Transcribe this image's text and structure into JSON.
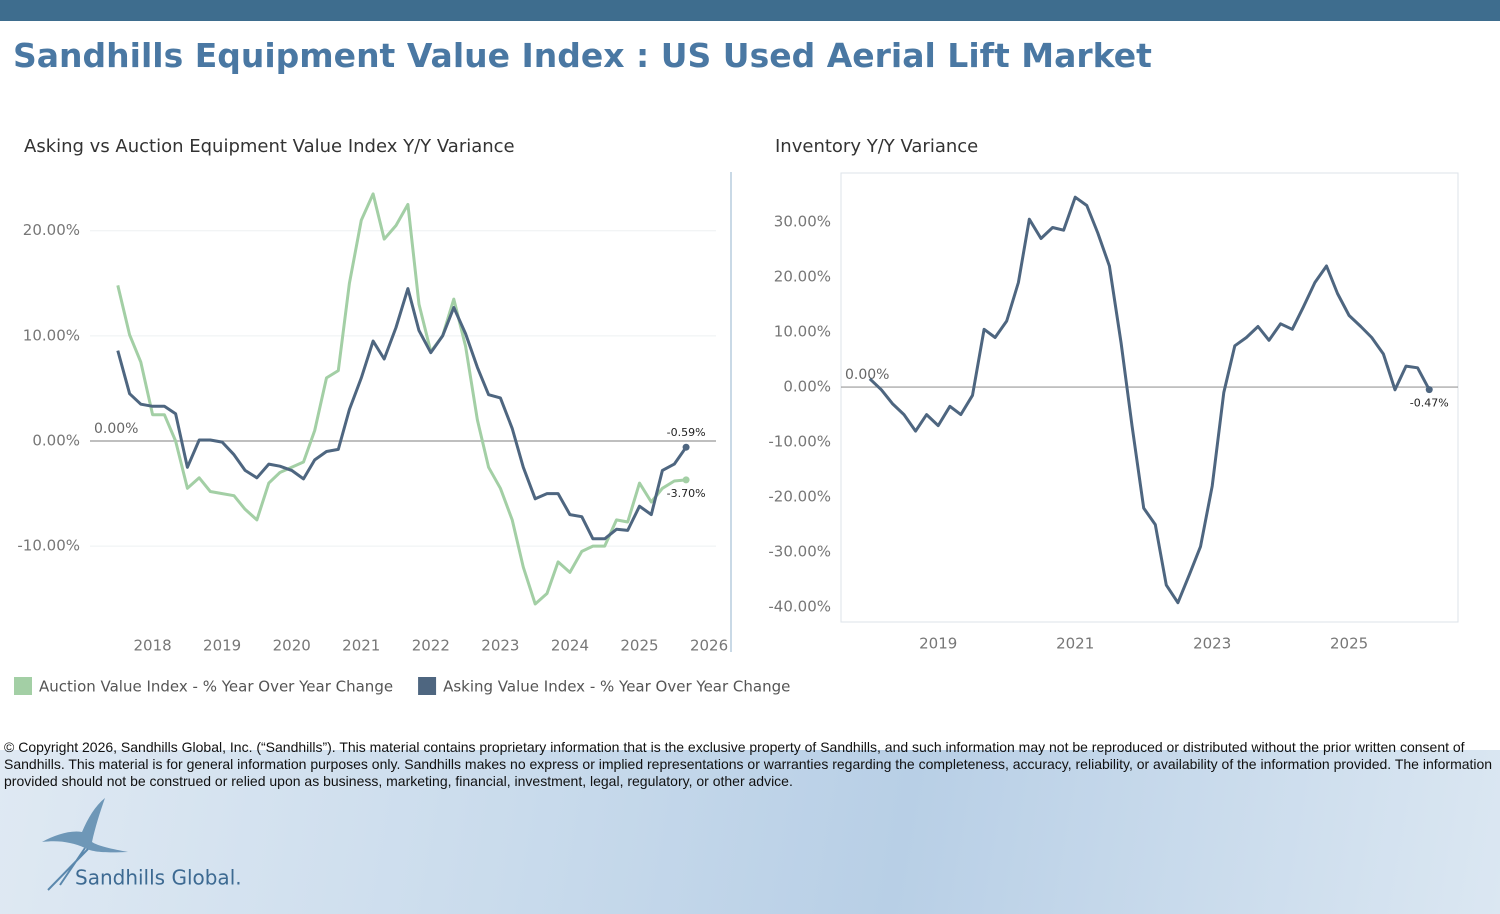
{
  "header": {
    "title": "Sandhills Equipment Value Index : US Used Aerial Lift Market"
  },
  "chart_data": [
    {
      "type": "line",
      "title": "Asking vs Auction Equipment Value Index Y/Y Variance",
      "x": [
        2017.5,
        2017.67,
        2017.83,
        2018,
        2018.17,
        2018.33,
        2018.5,
        2018.67,
        2018.83,
        2019,
        2019.17,
        2019.33,
        2019.5,
        2019.67,
        2019.83,
        2020,
        2020.17,
        2020.33,
        2020.5,
        2020.67,
        2020.83,
        2021,
        2021.17,
        2021.33,
        2021.5,
        2021.67,
        2021.83,
        2022,
        2022.17,
        2022.33,
        2022.5,
        2022.67,
        2022.83,
        2023,
        2023.17,
        2023.33,
        2023.5,
        2023.67,
        2023.83,
        2024,
        2024.17,
        2024.33,
        2024.5,
        2024.67,
        2024.83,
        2025,
        2025.17,
        2025.33,
        2025.5,
        2025.67
      ],
      "xlim": [
        2017.1,
        2026.1
      ],
      "xticks": [
        2018,
        2019,
        2020,
        2021,
        2022,
        2023,
        2024,
        2025,
        2026
      ],
      "ylim": [
        -17.5,
        25.3
      ],
      "yticks": [
        {
          "value": -10,
          "label": "-10.00%"
        },
        {
          "value": 0,
          "label": "0.00%"
        },
        {
          "value": 10,
          "label": "10.00%"
        },
        {
          "value": 20,
          "label": "20.00%"
        }
      ],
      "grid": true,
      "legend": "bottom",
      "reference_line": {
        "value": 0,
        "label": "0.00%"
      },
      "series": [
        {
          "name": "Auction Value Index - % Year Over Year Change",
          "color": "#a3cfa5",
          "values": [
            14.8,
            10.1,
            7.5,
            2.5,
            2.5,
            0,
            -4.5,
            -3.5,
            -4.8,
            -5,
            -5.2,
            -6.5,
            -7.5,
            -4,
            -3,
            -2.5,
            -2,
            1,
            6,
            6.7,
            15,
            21,
            23.5,
            19.2,
            20.5,
            22.5,
            13,
            8.5,
            10,
            13.5,
            9,
            2,
            -2.5,
            -4.5,
            -7.5,
            -12,
            -15.5,
            -14.5,
            -11.5,
            -12.5,
            -10.5,
            -10,
            -10,
            -7.5,
            -7.7,
            -4,
            -5.8,
            -4.5,
            -3.8,
            -3.7
          ],
          "value_labels": [
            null,
            null,
            null,
            null,
            null,
            null,
            null,
            null,
            null,
            null,
            null,
            null,
            null,
            null,
            null,
            null,
            null,
            null,
            null,
            null,
            null,
            null,
            null,
            null,
            null,
            null,
            null,
            null,
            null,
            null,
            null,
            null,
            null,
            null,
            null,
            null,
            null,
            null,
            null,
            null,
            null,
            null,
            null,
            null,
            null,
            null,
            null,
            null,
            null,
            "-3.70%"
          ]
        },
        {
          "name": "Asking Value Index - % Year Over Year Change",
          "color": "#4e6680",
          "values": [
            8.6,
            4.5,
            3.5,
            3.3,
            3.3,
            2.6,
            -2.5,
            0.1,
            0.1,
            -0.1,
            -1.3,
            -2.8,
            -3.5,
            -2.2,
            -2.4,
            -2.8,
            -3.6,
            -1.8,
            -1,
            -0.8,
            3,
            6,
            9.5,
            7.8,
            10.8,
            14.5,
            10.5,
            8.4,
            10,
            12.7,
            10.2,
            7,
            4.4,
            4.1,
            1.2,
            -2.5,
            -5.5,
            -5,
            -5,
            -7,
            -7.2,
            -9.3,
            -9.3,
            -8.4,
            -8.5,
            -6.2,
            -7,
            -2.8,
            -2.2,
            -0.59
          ],
          "value_labels": [
            null,
            null,
            null,
            null,
            null,
            null,
            null,
            null,
            null,
            null,
            null,
            null,
            null,
            null,
            null,
            null,
            null,
            null,
            null,
            null,
            null,
            null,
            null,
            null,
            null,
            null,
            null,
            null,
            null,
            null,
            null,
            null,
            null,
            null,
            null,
            null,
            null,
            null,
            null,
            null,
            null,
            null,
            null,
            null,
            null,
            null,
            null,
            null,
            null,
            "-0.59%"
          ]
        }
      ]
    },
    {
      "type": "line",
      "title": "Inventory Y/Y Variance",
      "x": [
        2018,
        2018.17,
        2018.33,
        2018.5,
        2018.67,
        2018.83,
        2019,
        2019.17,
        2019.33,
        2019.5,
        2019.67,
        2019.83,
        2020,
        2020.17,
        2020.33,
        2020.5,
        2020.67,
        2020.83,
        2021,
        2021.17,
        2021.33,
        2021.5,
        2021.67,
        2021.83,
        2022,
        2022.17,
        2022.33,
        2022.5,
        2022.67,
        2022.83,
        2023,
        2023.17,
        2023.33,
        2023.5,
        2023.67,
        2023.83,
        2024,
        2024.17,
        2024.33,
        2024.5,
        2024.67,
        2024.83,
        2025,
        2025.17,
        2025.33,
        2025.5,
        2025.67,
        2025.83,
        2026,
        2026.17
      ],
      "xlim": [
        2017.58,
        2026.59
      ],
      "xticks": [
        2019,
        2021,
        2023,
        2025
      ],
      "ylim": [
        -42.7,
        38.9
      ],
      "yticks": [
        {
          "value": -40,
          "label": "-40.00%"
        },
        {
          "value": -30,
          "label": "-30.00%"
        },
        {
          "value": -20,
          "label": "-20.00%"
        },
        {
          "value": -10,
          "label": "-10.00%"
        },
        {
          "value": 0,
          "label": "0.00%"
        },
        {
          "value": 10,
          "label": "10.00%"
        },
        {
          "value": 20,
          "label": "20.00%"
        },
        {
          "value": 30,
          "label": "30.00%"
        }
      ],
      "grid": false,
      "frame": true,
      "reference_line": {
        "value": 0,
        "label": "0.00%"
      },
      "series": [
        {
          "color": "#4e6680",
          "values": [
            1.5,
            -0.5,
            -3,
            -5,
            -8,
            -5,
            -7,
            -3.5,
            -5,
            -1.5,
            10.5,
            9,
            12,
            19,
            30.5,
            27,
            29,
            28.5,
            34.5,
            33,
            28,
            22,
            8,
            -7,
            -22,
            -25,
            -36,
            -39.2,
            -34,
            -29,
            -18,
            -1,
            7.5,
            9,
            11,
            8.5,
            11.5,
            10.5,
            14.5,
            19,
            22,
            17,
            13,
            11,
            9,
            6,
            -0.5,
            3.8,
            3.5,
            -0.47
          ],
          "value_labels": [
            null,
            null,
            null,
            null,
            null,
            null,
            null,
            null,
            null,
            null,
            null,
            null,
            null,
            null,
            null,
            null,
            null,
            null,
            null,
            null,
            null,
            null,
            null,
            null,
            null,
            null,
            null,
            null,
            null,
            null,
            null,
            null,
            null,
            null,
            null,
            null,
            null,
            null,
            null,
            null,
            null,
            null,
            null,
            null,
            null,
            null,
            null,
            null,
            null,
            "-0.47%"
          ]
        }
      ]
    }
  ],
  "footer": {
    "copyright": "© Copyright 2026, Sandhills Global, Inc. (“Sandhills”). This material contains proprietary information that is the exclusive property of Sandhills, and such information may not be reproduced or distributed without the prior written consent of Sandhills. This material is for general information purposes only. Sandhills makes no express or implied representations or warranties regarding the completeness, accuracy, reliability, or availability of the information provided. The information provided should not be construed or relied upon as business, marketing, financial, investment, legal, regulatory, or other advice.",
    "logo": "Sandhills Global."
  }
}
